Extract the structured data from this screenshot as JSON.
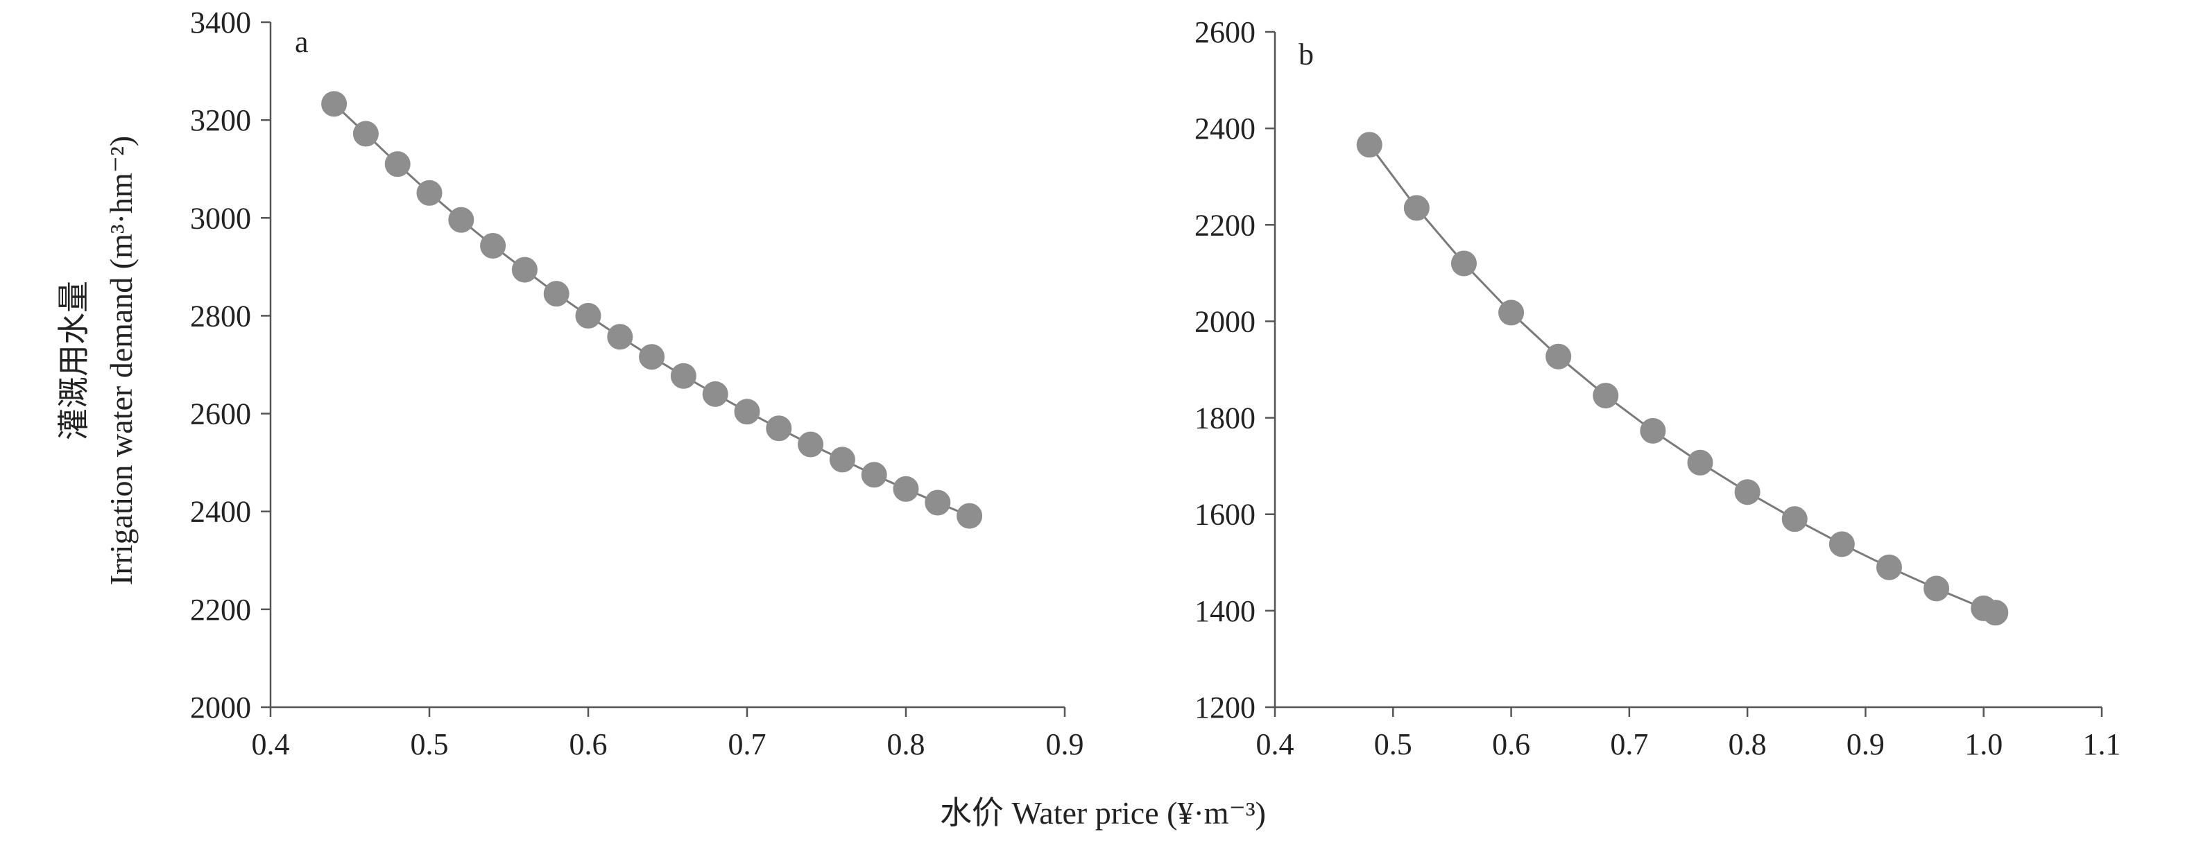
{
  "figure": {
    "x_axis_title": "水价 Water price (¥·m⁻³)",
    "y_axis_title_cn": "灌溉用水量",
    "y_axis_title_en": "Irrigation water demand (m³·hm⁻²)"
  },
  "chart_data": [
    {
      "type": "scatter",
      "panel_label": "a",
      "xlim": [
        0.4,
        0.9
      ],
      "ylim": [
        2000,
        3400
      ],
      "x_ticks": [
        0.4,
        0.5,
        0.6,
        0.7,
        0.8,
        0.9
      ],
      "x_tick_labels": [
        "0.4",
        "0.5",
        "0.6",
        "0.7",
        "0.8",
        "0.9"
      ],
      "y_ticks": [
        2000,
        2200,
        2400,
        2600,
        2800,
        3000,
        3200,
        3400
      ],
      "y_tick_labels": [
        "2000",
        "2200",
        "2400",
        "2600",
        "2800",
        "3000",
        "3200",
        "3400"
      ],
      "grid": false,
      "x": [
        0.44,
        0.46,
        0.48,
        0.5,
        0.52,
        0.54,
        0.56,
        0.58,
        0.6,
        0.62,
        0.64,
        0.66,
        0.68,
        0.7,
        0.72,
        0.74,
        0.76,
        0.78,
        0.8,
        0.82,
        0.84
      ],
      "y": [
        3233,
        3172,
        3110,
        3051,
        2996,
        2943,
        2894,
        2845,
        2800,
        2757,
        2716,
        2677,
        2640,
        2604,
        2570,
        2537,
        2506,
        2475,
        2446,
        2418,
        2391
      ]
    },
    {
      "type": "scatter",
      "panel_label": "b",
      "xlim": [
        0.4,
        1.1
      ],
      "ylim": [
        1200,
        2600
      ],
      "x_ticks": [
        0.4,
        0.5,
        0.6,
        0.7,
        0.8,
        0.9,
        1.0,
        1.1
      ],
      "x_tick_labels": [
        "0.4",
        "0.5",
        "0.6",
        "0.7",
        "0.8",
        "0.9",
        "1.0",
        "1.1"
      ],
      "y_ticks": [
        1200,
        1400,
        1600,
        1800,
        2000,
        2200,
        2400,
        2600
      ],
      "y_tick_labels": [
        "1200",
        "1400",
        "1600",
        "1800",
        "2000",
        "2200",
        "2400",
        "2600"
      ],
      "grid": false,
      "x": [
        0.48,
        0.52,
        0.56,
        0.6,
        0.64,
        0.68,
        0.72,
        0.76,
        0.8,
        0.84,
        0.88,
        0.92,
        0.96,
        1.0,
        1.01
      ],
      "y": [
        2366,
        2235,
        2120,
        2018,
        1927,
        1846,
        1773,
        1707,
        1646,
        1590,
        1538,
        1490,
        1446,
        1405,
        1396
      ]
    }
  ]
}
